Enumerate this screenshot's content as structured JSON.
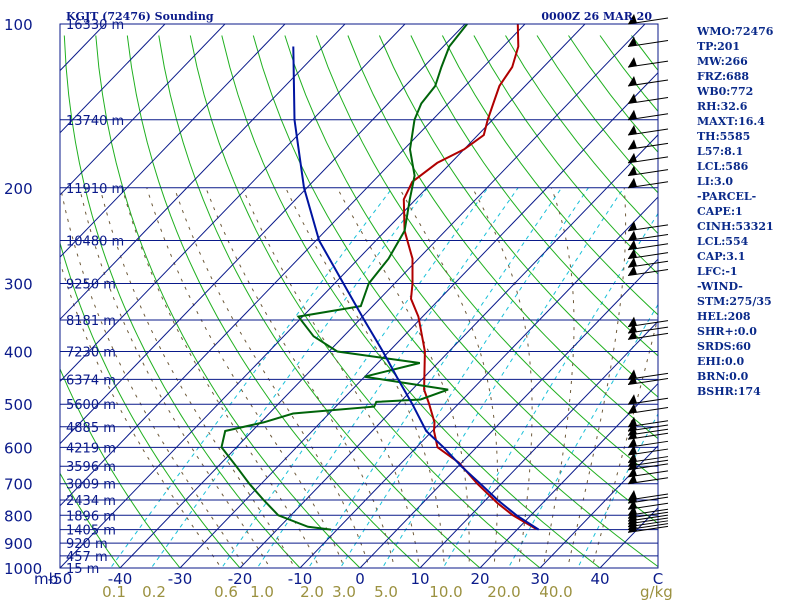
{
  "header": {
    "station": "KGJT (72476) Sounding",
    "time": "0000Z 26 MAR 20"
  },
  "indices": [
    "WMO:72476",
    "TP:201",
    "MW:266",
    "FRZ:688",
    "WB0:772",
    "RH:32.6",
    "MAXT:16.4",
    "TH:5585",
    "L57:8.1",
    "LCL:586",
    "LI:3.0",
    "-PARCEL-",
    "CAPE:1",
    "CINH:53321",
    "LCL:554",
    "CAP:3.1",
    "LFC:-1",
    "-WIND-",
    "STM:275/35",
    "HEL:208",
    "SHR+:0.0",
    "SRDS:60",
    "EHI:0.0",
    "BRN:0.0",
    "BSHR:174"
  ],
  "chart_data": {
    "type": "line",
    "chart_kind": "skew-T log-P sounding",
    "x_unit_label": "C",
    "y_unit_label": "mb",
    "temperature_ticks": [
      -50,
      -40,
      -30,
      -20,
      -10,
      0,
      10,
      20,
      30,
      40
    ],
    "pressure_ticks": [
      100,
      200,
      300,
      400,
      500,
      600,
      700,
      800,
      900,
      1000
    ],
    "mixing_ratio_ticks": [
      "0.1",
      "0.2",
      "0.6",
      "1.0",
      "2.0",
      "3.0",
      "5.0",
      "10.0",
      "20.0",
      "40.0"
    ],
    "mixing_ratio_unit": "g/kg",
    "height_levels": [
      {
        "p": 100,
        "label": "16330 m"
      },
      {
        "p": 150,
        "label": "13740 m"
      },
      {
        "p": 200,
        "label": "11910 m"
      },
      {
        "p": 250,
        "label": "10480 m"
      },
      {
        "p": 300,
        "label": "9250 m"
      },
      {
        "p": 350,
        "label": "8181 m"
      },
      {
        "p": 400,
        "label": "7230 m"
      },
      {
        "p": 450,
        "label": "6374 m"
      },
      {
        "p": 500,
        "label": "5600 m"
      },
      {
        "p": 550,
        "label": "4885 m"
      },
      {
        "p": 600,
        "label": "4219 m"
      },
      {
        "p": 650,
        "label": "3596 m"
      },
      {
        "p": 700,
        "label": "3009 m"
      },
      {
        "p": 750,
        "label": "2434 m"
      },
      {
        "p": 800,
        "label": "1896 m"
      },
      {
        "p": 850,
        "label": "1405 m"
      },
      {
        "p": 900,
        "label": "920 m"
      },
      {
        "p": 950,
        "label": "457 m"
      },
      {
        "p": 1000,
        "label": "15 m"
      }
    ],
    "series": [
      {
        "role": "temperature",
        "color": "#b00000",
        "points": [
          [
            847,
            23.0
          ],
          [
            800,
            17.0
          ],
          [
            760,
            12.5
          ],
          [
            700,
            6.0
          ],
          [
            640,
            -0.5
          ],
          [
            600,
            -6.5
          ],
          [
            560,
            -9.7
          ],
          [
            540,
            -11.0
          ],
          [
            500,
            -14.8
          ],
          [
            470,
            -18.0
          ],
          [
            400,
            -24.0
          ],
          [
            345,
            -30.7
          ],
          [
            320,
            -34.8
          ],
          [
            300,
            -37.0
          ],
          [
            270,
            -41.0
          ],
          [
            240,
            -46.8
          ],
          [
            210,
            -52.0
          ],
          [
            195,
            -53.4
          ],
          [
            180,
            -52.3
          ],
          [
            170,
            -50.0
          ],
          [
            160,
            -49.0
          ],
          [
            150,
            -50.8
          ],
          [
            140,
            -52.5
          ],
          [
            130,
            -54.3
          ],
          [
            120,
            -55.2
          ],
          [
            110,
            -57.5
          ],
          [
            100,
            -61.2
          ]
        ]
      },
      {
        "role": "dewpoint",
        "color": "#00640a",
        "points": [
          [
            850,
            -11.0
          ],
          [
            840,
            -15.3
          ],
          [
            800,
            -22.1
          ],
          [
            750,
            -27.0
          ],
          [
            700,
            -32.0
          ],
          [
            650,
            -37.0
          ],
          [
            600,
            -42.5
          ],
          [
            560,
            -44.5
          ],
          [
            540,
            -39.5
          ],
          [
            520,
            -36.0
          ],
          [
            505,
            -23.6
          ],
          [
            495,
            -24.0
          ],
          [
            490,
            -17.0
          ],
          [
            470,
            -14.0
          ],
          [
            445,
            -30.0
          ],
          [
            420,
            -23.0
          ],
          [
            400,
            -38.6
          ],
          [
            375,
            -45.0
          ],
          [
            345,
            -50.7
          ],
          [
            330,
            -42.0
          ],
          [
            300,
            -44.3
          ],
          [
            270,
            -45.0
          ],
          [
            240,
            -46.8
          ],
          [
            210,
            -51.0
          ],
          [
            190,
            -54.0
          ],
          [
            170,
            -59.0
          ],
          [
            150,
            -63.0
          ],
          [
            140,
            -64.5
          ],
          [
            130,
            -65.0
          ],
          [
            120,
            -67.0
          ],
          [
            110,
            -69.0
          ],
          [
            95,
            -70.0
          ]
        ]
      },
      {
        "role": "parcel",
        "color": "#0014a0",
        "points": [
          [
            850,
            23.6
          ],
          [
            800,
            17.6
          ],
          [
            750,
            12.0
          ],
          [
            700,
            6.5
          ],
          [
            650,
            0.5
          ],
          [
            600,
            -5.5
          ],
          [
            560,
            -11.0
          ],
          [
            500,
            -17.6
          ],
          [
            450,
            -24.0
          ],
          [
            400,
            -31.0
          ],
          [
            350,
            -39.2
          ],
          [
            300,
            -48.5
          ],
          [
            250,
            -59.5
          ],
          [
            200,
            -70.5
          ],
          [
            150,
            -83.0
          ],
          [
            110,
            -95.0
          ]
        ]
      }
    ],
    "wind_levels_mb": [
      100,
      110,
      120,
      130,
      140,
      150,
      160,
      170,
      180,
      190,
      200,
      240,
      250,
      260,
      270,
      280,
      290,
      360,
      370,
      380,
      450,
      460,
      500,
      520,
      550,
      560,
      570,
      580,
      600,
      620,
      640,
      650,
      660,
      680,
      700,
      750,
      760,
      780,
      800,
      810,
      820,
      830,
      840,
      850,
      860
    ],
    "wind_barb_color": "#000000"
  },
  "colors": {
    "frame": "#0a1a8a",
    "isobar": "#0a1a8a",
    "isotherm": "#0a1a8a",
    "dry_adiabat": "#20b020",
    "moist_adiabat": "#6e5a3a",
    "mixing_ratio": "#19c0d8",
    "tick_bottom": "#0a1a8a",
    "mix_tick": "#9b9140"
  }
}
